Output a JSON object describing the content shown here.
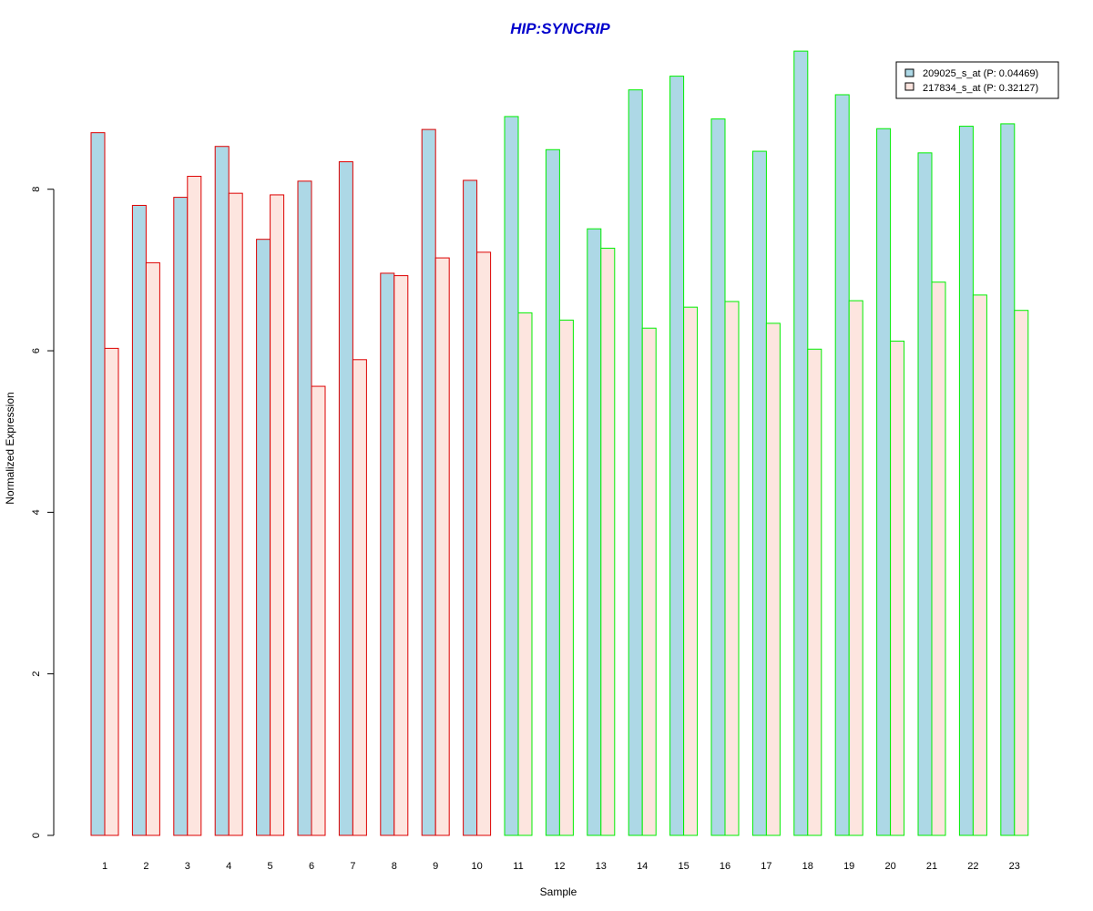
{
  "chart_data": {
    "type": "bar",
    "title": "HIP:SYNCRIP",
    "xlabel": "Sample",
    "ylabel": "Normalized Expression",
    "ylim": [
      0,
      9.7
    ],
    "yticks": [
      0,
      2,
      4,
      6,
      8
    ],
    "grid": false,
    "legend_position": "top-right",
    "categories": [
      "1",
      "2",
      "3",
      "4",
      "5",
      "6",
      "7",
      "8",
      "9",
      "10",
      "11",
      "12",
      "13",
      "14",
      "15",
      "16",
      "17",
      "18",
      "19",
      "20",
      "21",
      "22",
      "23"
    ],
    "group_a_count": 10,
    "series": [
      {
        "name": "209025_s_at (P: 0.04469)",
        "fill": "#add8e6",
        "values": [
          8.7,
          7.8,
          7.9,
          8.53,
          7.38,
          8.1,
          8.34,
          6.96,
          8.74,
          8.11,
          8.9,
          8.49,
          7.51,
          9.23,
          9.4,
          8.87,
          8.47,
          9.71,
          9.17,
          8.75,
          8.45,
          8.78,
          8.81
        ]
      },
      {
        "name": "217834_s_at (P: 0.32127)",
        "fill": "#fde5df",
        "values": [
          6.03,
          7.09,
          8.16,
          7.95,
          7.93,
          5.56,
          5.89,
          6.93,
          7.15,
          7.22,
          6.47,
          6.38,
          7.27,
          6.28,
          6.54,
          6.61,
          6.34,
          6.02,
          6.62,
          6.12,
          6.85,
          6.69,
          6.5
        ]
      }
    ],
    "group_colors": {
      "group_a": "#dd0000",
      "group_b": "#00ee00"
    },
    "title_color": "#0000cc"
  }
}
